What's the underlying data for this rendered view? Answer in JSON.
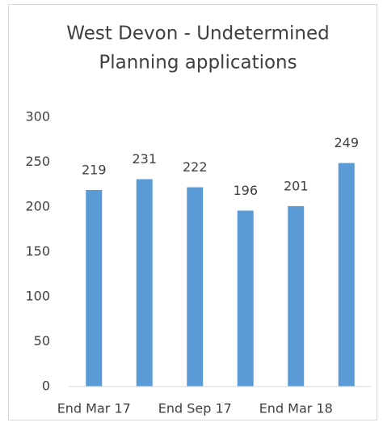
{
  "chart_data": {
    "type": "bar",
    "title": [
      "West Devon - Undetermined",
      "Planning applications"
    ],
    "categories": [
      "End Mar 17",
      null,
      "End Sep 17",
      null,
      "End Mar 18",
      null
    ],
    "values": [
      219,
      231,
      222,
      196,
      201,
      249
    ],
    "color": "#5b9bd5",
    "ylim": [
      0,
      300
    ],
    "yticks": [
      0,
      50,
      100,
      150,
      200,
      250,
      300
    ],
    "grid": false,
    "data_labels": true
  }
}
